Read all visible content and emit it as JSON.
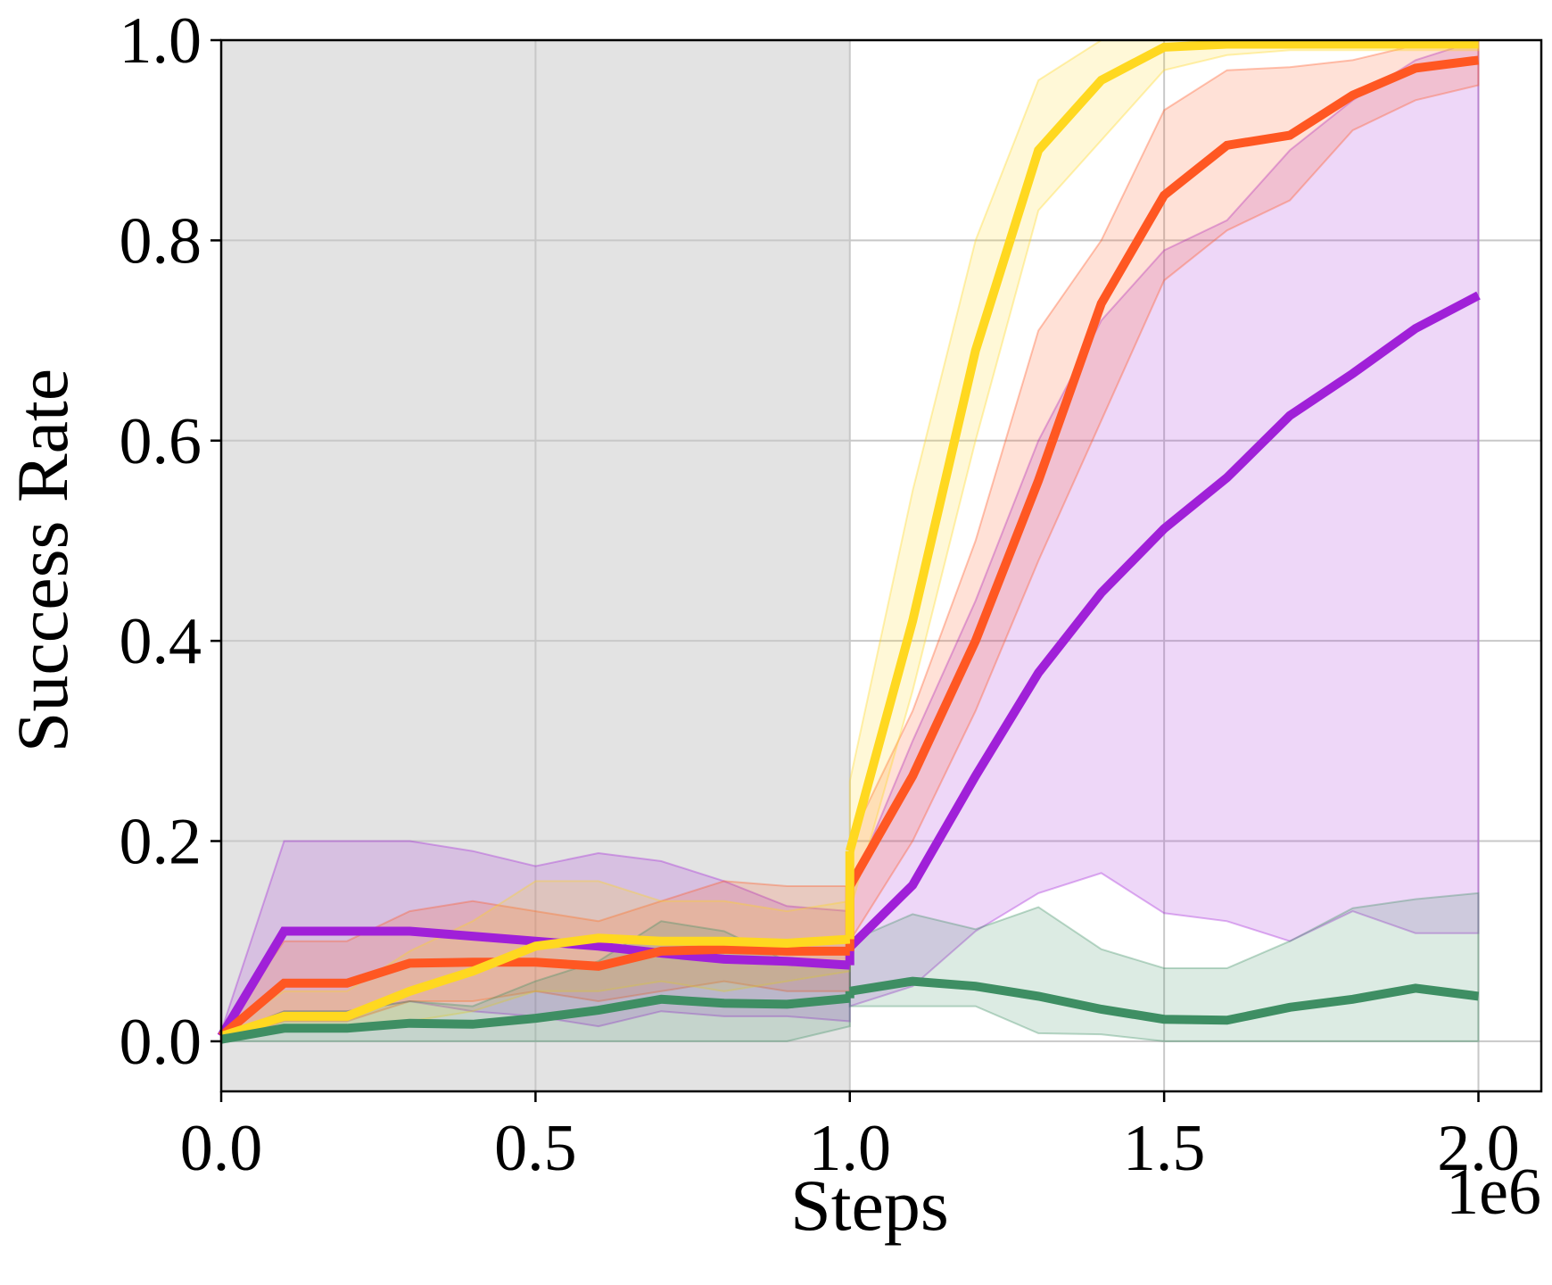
{
  "chart_data": {
    "type": "line",
    "xlabel": "Steps",
    "ylabel": "Success Rate",
    "x_offset_label": "1e6",
    "xlim": [
      0,
      2.1
    ],
    "ylim": [
      -0.05,
      1.0
    ],
    "x_ticks": [
      0.0,
      0.5,
      1.0,
      1.5,
      2.0
    ],
    "x_tick_labels": [
      "0.0",
      "0.5",
      "1.0",
      "1.5",
      "2.0"
    ],
    "y_ticks": [
      0.0,
      0.2,
      0.4,
      0.6,
      0.8,
      1.0
    ],
    "y_tick_labels": [
      "0.0",
      "0.2",
      "0.4",
      "0.6",
      "0.8",
      "1.0"
    ],
    "grid": true,
    "shaded_region": {
      "x": [
        0,
        1.0
      ],
      "color": "#e3e3e3"
    },
    "x_before": [
      0.0,
      0.1,
      0.2,
      0.3,
      0.4,
      0.5,
      0.6,
      0.7,
      0.8,
      0.9,
      1.0
    ],
    "x_after": [
      1.0,
      1.1,
      1.2,
      1.3,
      1.4,
      1.5,
      1.6,
      1.7,
      1.8,
      1.9,
      2.0
    ],
    "series": [
      {
        "color": "#a020d8",
        "before": [
          0.005,
          0.11,
          0.11,
          0.11,
          0.105,
          0.1,
          0.095,
          0.088,
          0.082,
          0.08,
          0.076
        ],
        "before_low": [
          0.005,
          0.03,
          0.03,
          0.04,
          0.03,
          0.025,
          0.015,
          0.03,
          0.025,
          0.025,
          0.02
        ],
        "before_high": [
          0.01,
          0.2,
          0.2,
          0.2,
          0.19,
          0.175,
          0.188,
          0.18,
          0.16,
          0.135,
          0.13
        ],
        "after": [
          0.094,
          0.156,
          0.265,
          0.368,
          0.448,
          0.512,
          0.563,
          0.625,
          0.667,
          0.712,
          0.745
        ],
        "after_low": [
          0.035,
          0.055,
          0.11,
          0.148,
          0.168,
          0.128,
          0.12,
          0.1,
          0.13,
          0.108,
          0.108
        ],
        "after_high": [
          0.15,
          0.3,
          0.44,
          0.6,
          0.72,
          0.79,
          0.82,
          0.89,
          0.94,
          0.98,
          1.0
        ]
      },
      {
        "color": "#ff5722",
        "before": [
          0.005,
          0.058,
          0.058,
          0.078,
          0.079,
          0.079,
          0.075,
          0.09,
          0.092,
          0.09,
          0.09
        ],
        "before_low": [
          0.0,
          0.02,
          0.02,
          0.04,
          0.04,
          0.05,
          0.04,
          0.05,
          0.06,
          0.05,
          0.05
        ],
        "before_high": [
          0.01,
          0.1,
          0.1,
          0.13,
          0.14,
          0.13,
          0.12,
          0.14,
          0.16,
          0.155,
          0.155
        ],
        "after": [
          0.155,
          0.265,
          0.4,
          0.56,
          0.737,
          0.845,
          0.895,
          0.905,
          0.945,
          0.972,
          0.98
        ],
        "after_low": [
          0.1,
          0.2,
          0.33,
          0.48,
          0.62,
          0.76,
          0.81,
          0.84,
          0.91,
          0.94,
          0.955
        ],
        "after_high": [
          0.2,
          0.33,
          0.5,
          0.71,
          0.8,
          0.93,
          0.97,
          0.973,
          0.98,
          0.995,
          1.0
        ]
      },
      {
        "color": "#ffd820",
        "before": [
          0.005,
          0.025,
          0.025,
          0.05,
          0.07,
          0.095,
          0.103,
          0.1,
          0.1,
          0.098,
          0.102
        ],
        "before_low": [
          0.0,
          0.01,
          0.01,
          0.02,
          0.03,
          0.05,
          0.05,
          0.06,
          0.05,
          0.06,
          0.07
        ],
        "before_high": [
          0.01,
          0.05,
          0.05,
          0.09,
          0.12,
          0.16,
          0.16,
          0.14,
          0.14,
          0.13,
          0.14
        ],
        "after": [
          0.19,
          0.42,
          0.69,
          0.89,
          0.96,
          0.993,
          0.996,
          0.996,
          0.996,
          0.996,
          0.996
        ],
        "after_low": [
          0.13,
          0.35,
          0.6,
          0.83,
          0.9,
          0.97,
          0.985,
          0.99,
          0.99,
          0.99,
          0.99
        ],
        "after_high": [
          0.26,
          0.55,
          0.8,
          0.96,
          1.0,
          1.0,
          1.0,
          1.0,
          1.0,
          1.0,
          1.0
        ]
      },
      {
        "color": "#3e8e63",
        "before": [
          0.002,
          0.013,
          0.013,
          0.018,
          0.017,
          0.023,
          0.031,
          0.042,
          0.038,
          0.037,
          0.043
        ],
        "before_low": [
          0.0,
          0.0,
          0.0,
          0.0,
          0.0,
          0.0,
          0.0,
          0.0,
          0.0,
          0.0,
          0.015
        ],
        "before_high": [
          0.005,
          0.03,
          0.03,
          0.04,
          0.035,
          0.06,
          0.08,
          0.12,
          0.11,
          0.08,
          0.08
        ],
        "after": [
          0.05,
          0.06,
          0.055,
          0.045,
          0.032,
          0.022,
          0.021,
          0.034,
          0.042,
          0.053,
          0.045
        ],
        "after_low": [
          0.035,
          0.035,
          0.035,
          0.008,
          0.007,
          0.0,
          0.0,
          0.0,
          0.0,
          0.0,
          0.0
        ],
        "after_high": [
          0.1,
          0.127,
          0.112,
          0.134,
          0.092,
          0.073,
          0.073,
          0.1,
          0.133,
          0.142,
          0.148
        ]
      }
    ]
  }
}
